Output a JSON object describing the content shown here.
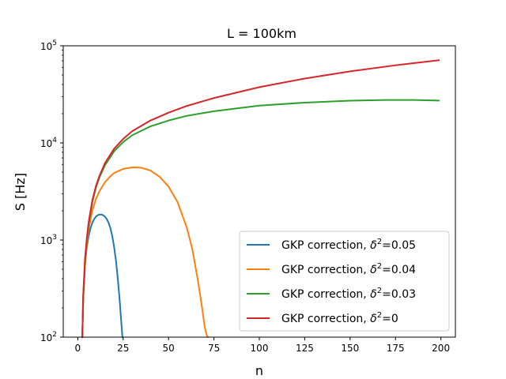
{
  "chart_data": {
    "type": "line",
    "title": "L = 100km",
    "xlabel": "n",
    "ylabel": "S [Hz]",
    "xlim": [
      -8,
      208
    ],
    "ylim": [
      100,
      100000
    ],
    "yscale": "log",
    "x_ticks": [
      0,
      25,
      50,
      75,
      100,
      125,
      150,
      175,
      200
    ],
    "y_ticks": [
      {
        "value": 100,
        "base": "10",
        "exp": "2"
      },
      {
        "value": 1000,
        "base": "10",
        "exp": "3"
      },
      {
        "value": 10000,
        "base": "10",
        "exp": "4"
      },
      {
        "value": 100000,
        "base": "10",
        "exp": "5"
      }
    ],
    "legend": {
      "position": "lower-right",
      "prefix": "GKP correction, ",
      "symbol": "δ",
      "power": "2"
    },
    "series": [
      {
        "name": "GKP correction, δ²=0.05",
        "legend_value": "=0.05",
        "color": "#1f77b4",
        "x": [
          2.5,
          3,
          4,
          5,
          6,
          7,
          8,
          9,
          10,
          11,
          12,
          13,
          14,
          15,
          16,
          17,
          18,
          19,
          20,
          21,
          22,
          23,
          24,
          24.6
        ],
        "y": [
          100,
          250,
          560,
          850,
          1100,
          1320,
          1500,
          1640,
          1740,
          1800,
          1830,
          1830,
          1800,
          1740,
          1640,
          1500,
          1320,
          1100,
          850,
          620,
          410,
          250,
          140,
          100
        ]
      },
      {
        "name": "GKP correction, δ²=0.04",
        "legend_value": "=0.04",
        "color": "#ff7f0e",
        "x": [
          2.5,
          3,
          4,
          5,
          6,
          8,
          10,
          12,
          15,
          18,
          20,
          25,
          30,
          32,
          35,
          40,
          45,
          50,
          55,
          60,
          63,
          66,
          68,
          70,
          71,
          71.7
        ],
        "y": [
          100,
          250,
          560,
          900,
          1300,
          2000,
          2650,
          3200,
          3950,
          4550,
          4900,
          5400,
          5600,
          5600,
          5550,
          5200,
          4500,
          3550,
          2450,
          1350,
          820,
          400,
          230,
          125,
          105,
          100
        ]
      },
      {
        "name": "GKP correction, δ²=0.03",
        "legend_value": "=0.03",
        "color": "#2ca02c",
        "x": [
          2.5,
          3,
          4,
          5,
          6,
          8,
          10,
          12,
          15,
          20,
          25,
          30,
          40,
          50,
          60,
          75,
          100,
          125,
          150,
          170,
          185,
          199
        ],
        "y": [
          100,
          260,
          620,
          1000,
          1450,
          2450,
          3450,
          4450,
          5900,
          8200,
          10200,
          12000,
          14800,
          17000,
          19000,
          21200,
          24200,
          26000,
          27200,
          27700,
          27700,
          27300
        ]
      },
      {
        "name": "GKP correction, δ²=0",
        "legend_value": "=0",
        "color": "#d62728",
        "x": [
          2.5,
          3,
          4,
          5,
          6,
          8,
          10,
          12,
          15,
          20,
          25,
          30,
          40,
          50,
          60,
          75,
          100,
          125,
          150,
          175,
          199
        ],
        "y": [
          100,
          270,
          650,
          1050,
          1530,
          2550,
          3600,
          4600,
          6200,
          8700,
          11000,
          13200,
          17000,
          20500,
          24000,
          29000,
          37500,
          46000,
          54500,
          63000,
          71000
        ]
      }
    ]
  }
}
